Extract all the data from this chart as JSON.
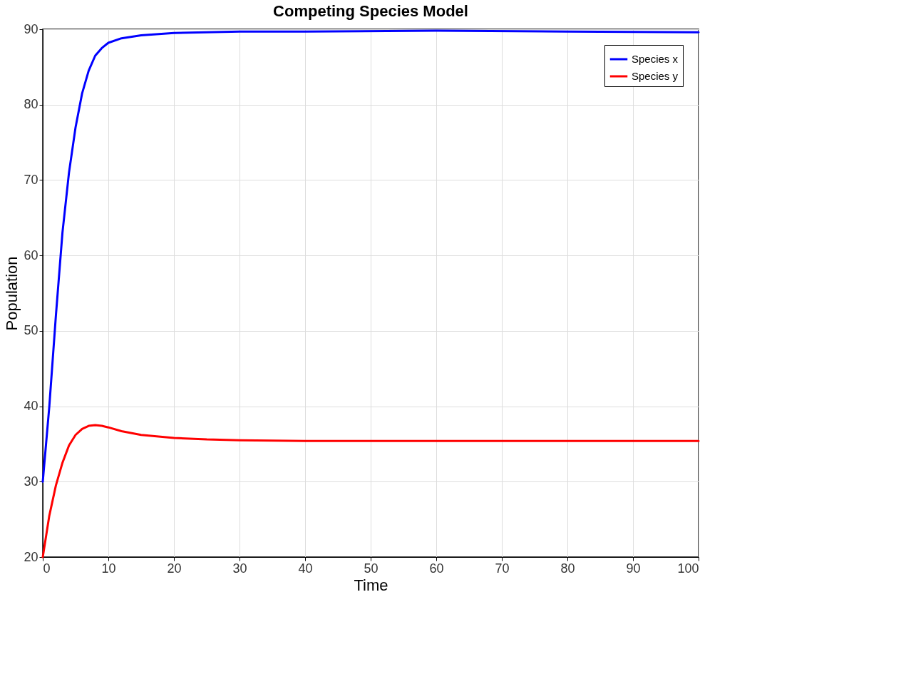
{
  "chart_data": {
    "type": "line",
    "title": "Competing Species Model",
    "xlabel": "Time",
    "ylabel": "Population",
    "xlim": [
      0,
      100
    ],
    "xticks": [
      0,
      10,
      20,
      30,
      40,
      50,
      60,
      70,
      80,
      90,
      100
    ],
    "ylim": [
      20,
      90
    ],
    "yticks": [
      20,
      30,
      40,
      50,
      60,
      70,
      80,
      90
    ],
    "grid": true,
    "legend": "top right",
    "line_style": "solid",
    "marker": "none",
    "series": [
      {
        "name": "Species x",
        "color": "#0000ff",
        "x": [
          0,
          1,
          2,
          3,
          4,
          5,
          6,
          7,
          8,
          9,
          10,
          12,
          15,
          20,
          30,
          40,
          60,
          80,
          100
        ],
        "values": [
          30,
          40,
          52,
          63,
          71,
          77,
          81.5,
          84.5,
          86.5,
          87.5,
          88.2,
          88.8,
          89.2,
          89.5,
          89.7,
          89.7,
          89.8,
          89.7,
          89.6
        ]
      },
      {
        "name": "Species y",
        "color": "#ff0000",
        "x": [
          0,
          1,
          2,
          3,
          4,
          5,
          6,
          7,
          8,
          9,
          10,
          12,
          15,
          20,
          25,
          30,
          40,
          60,
          80,
          100
        ],
        "values": [
          20,
          25.5,
          29.5,
          32.5,
          34.8,
          36.2,
          37,
          37.4,
          37.5,
          37.4,
          37.2,
          36.7,
          36.2,
          35.8,
          35.6,
          35.5,
          35.4,
          35.4,
          35.4,
          35.4
        ]
      }
    ]
  }
}
